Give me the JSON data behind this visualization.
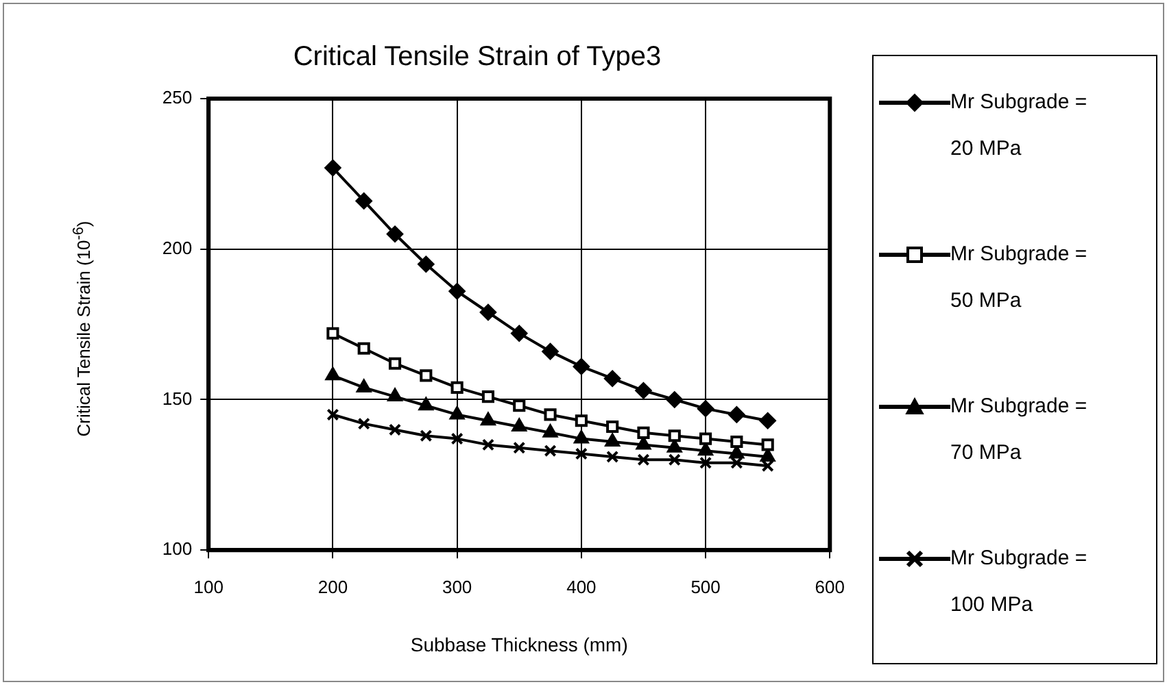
{
  "chart_data": {
    "type": "line",
    "title": "Critical Tensile Strain of Type3",
    "xlabel": "Subbase Thickness (mm)",
    "ylabel": "Critical Tensile Strain (10$^{-6}$)",
    "x": [
      200,
      225,
      250,
      275,
      300,
      325,
      350,
      375,
      400,
      425,
      450,
      475,
      500,
      525,
      550
    ],
    "series": [
      {
        "name": "Mr Subgrade = 20 MPa",
        "color": "#000000",
        "marker": "diamond",
        "values": [
          227,
          216,
          205,
          195,
          186,
          179,
          172,
          166,
          161,
          157,
          153,
          150,
          147,
          145,
          143
        ]
      },
      {
        "name": "Mr Subgrade = 50 MPa",
        "color": "#000000",
        "marker": "square",
        "values": [
          172,
          167,
          162,
          158,
          154,
          151,
          148,
          145,
          143,
          141,
          139,
          138,
          137,
          136,
          135
        ]
      },
      {
        "name": "Mr Subgrade = 70 MPa",
        "color": "#000000",
        "marker": "triangle",
        "values": [
          158,
          154,
          151,
          148,
          145,
          143,
          141,
          139,
          137,
          136,
          135,
          134,
          133,
          132,
          131
        ]
      },
      {
        "name": "Mr Subgrade = 100 MPa",
        "color": "#000000",
        "marker": "cross",
        "values": [
          145,
          142,
          140,
          138,
          137,
          135,
          134,
          133,
          132,
          131,
          130,
          130,
          129,
          129,
          128
        ]
      }
    ],
    "xlim": [
      100,
      600
    ],
    "xticks": [
      100,
      200,
      300,
      400,
      500,
      600
    ],
    "ylim": [
      100,
      250
    ],
    "yticks": [
      100,
      150,
      200,
      250
    ],
    "grid": true,
    "legend": "right"
  }
}
